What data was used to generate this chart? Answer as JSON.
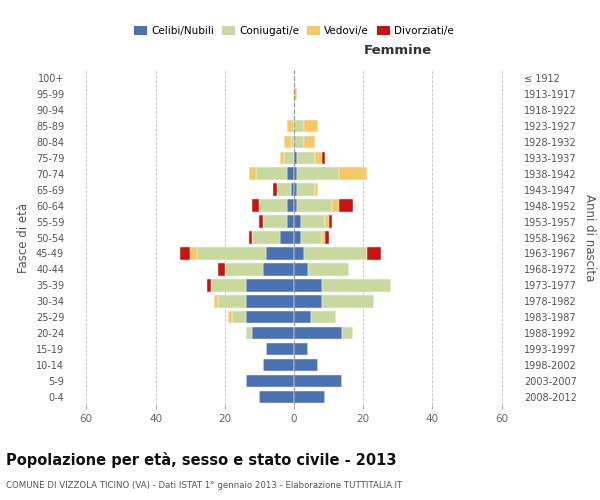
{
  "age_groups": [
    "0-4",
    "5-9",
    "10-14",
    "15-19",
    "20-24",
    "25-29",
    "30-34",
    "35-39",
    "40-44",
    "45-49",
    "50-54",
    "55-59",
    "60-64",
    "65-69",
    "70-74",
    "75-79",
    "80-84",
    "85-89",
    "90-94",
    "95-99",
    "100+"
  ],
  "birth_years": [
    "2008-2012",
    "2003-2007",
    "1998-2002",
    "1993-1997",
    "1988-1992",
    "1983-1987",
    "1978-1982",
    "1973-1977",
    "1968-1972",
    "1963-1967",
    "1958-1962",
    "1953-1957",
    "1948-1952",
    "1943-1947",
    "1938-1942",
    "1933-1937",
    "1928-1932",
    "1923-1927",
    "1918-1922",
    "1913-1917",
    "≤ 1912"
  ],
  "male_celibe": [
    10,
    14,
    9,
    8,
    12,
    14,
    14,
    14,
    9,
    8,
    4,
    2,
    2,
    1,
    2,
    0,
    0,
    0,
    0,
    0,
    0
  ],
  "male_coniugato": [
    0,
    0,
    0,
    0,
    2,
    4,
    8,
    10,
    11,
    20,
    8,
    7,
    8,
    4,
    9,
    3,
    1,
    0,
    0,
    0,
    0
  ],
  "male_vedovo": [
    0,
    0,
    0,
    0,
    0,
    1,
    1,
    0,
    0,
    2,
    0,
    0,
    0,
    0,
    2,
    1,
    2,
    2,
    0,
    0,
    0
  ],
  "male_divorziato": [
    0,
    0,
    0,
    0,
    0,
    0,
    0,
    1,
    2,
    3,
    1,
    1,
    2,
    1,
    0,
    0,
    0,
    0,
    0,
    0,
    0
  ],
  "female_nubile": [
    9,
    14,
    7,
    4,
    14,
    5,
    8,
    8,
    4,
    3,
    2,
    2,
    1,
    1,
    1,
    1,
    0,
    0,
    0,
    0,
    0
  ],
  "female_coniugata": [
    0,
    0,
    0,
    0,
    3,
    7,
    15,
    20,
    12,
    18,
    6,
    7,
    10,
    5,
    12,
    5,
    3,
    3,
    0,
    0,
    0
  ],
  "female_vedova": [
    0,
    0,
    0,
    0,
    0,
    0,
    0,
    0,
    0,
    0,
    1,
    1,
    2,
    1,
    8,
    2,
    3,
    4,
    0,
    1,
    0
  ],
  "female_divorziata": [
    0,
    0,
    0,
    0,
    0,
    0,
    0,
    0,
    0,
    4,
    1,
    1,
    4,
    0,
    0,
    1,
    0,
    0,
    0,
    0,
    0
  ],
  "color_celibe": "#4b72b0",
  "color_coniugato": "#c8d9a0",
  "color_vedovo": "#f5c868",
  "color_divorziato": "#cc1111",
  "title": "Popolazione per età, sesso e stato civile - 2013",
  "subtitle": "COMUNE DI VIZZOLA TICINO (VA) - Dati ISTAT 1° gennaio 2013 - Elaborazione TUTTITALIA.IT",
  "xlabel_right": "Femmine",
  "ylabel_left": "Fasce di età",
  "ylabel_right": "Anni di nascita",
  "xlim": 65,
  "bg_color": "#ffffff",
  "grid_color": "#bbbbbb"
}
